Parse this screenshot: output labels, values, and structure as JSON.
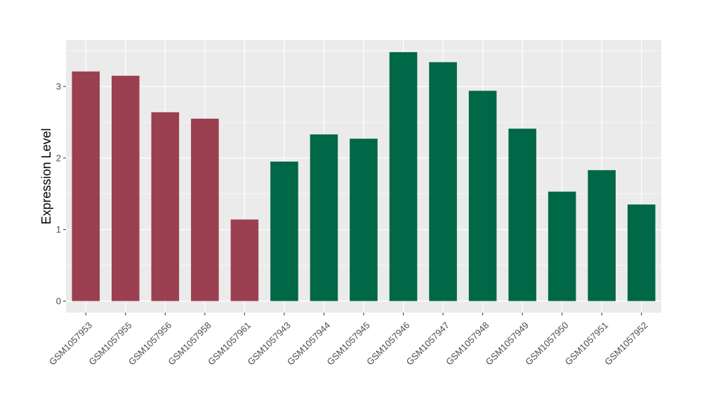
{
  "chart_data": {
    "type": "bar",
    "ylabel": "Expression Level",
    "xlabel": "",
    "ylim": [
      0,
      3.64
    ],
    "yticks": [
      0,
      1,
      2,
      3
    ],
    "grid": true,
    "background": "#EBEBEB",
    "gridline_color": "#FFFFFF",
    "categories": [
      "GSM1057953",
      "GSM1057955",
      "GSM1057956",
      "GSM1057958",
      "GSM1057961",
      "GSM1057943",
      "GSM1057944",
      "GSM1057945",
      "GSM1057946",
      "GSM1057947",
      "GSM1057948",
      "GSM1057949",
      "GSM1057950",
      "GSM1057951",
      "GSM1057952"
    ],
    "values": [
      3.21,
      3.15,
      2.64,
      2.55,
      1.14,
      1.95,
      2.33,
      2.27,
      3.48,
      3.34,
      2.94,
      2.41,
      1.53,
      1.83,
      1.35
    ],
    "bar_colors": [
      "#9A4050",
      "#9A4050",
      "#9A4050",
      "#9A4050",
      "#9A4050",
      "#006747",
      "#006747",
      "#006747",
      "#006747",
      "#006747",
      "#006747",
      "#006747",
      "#006747",
      "#006747",
      "#006747"
    ]
  }
}
